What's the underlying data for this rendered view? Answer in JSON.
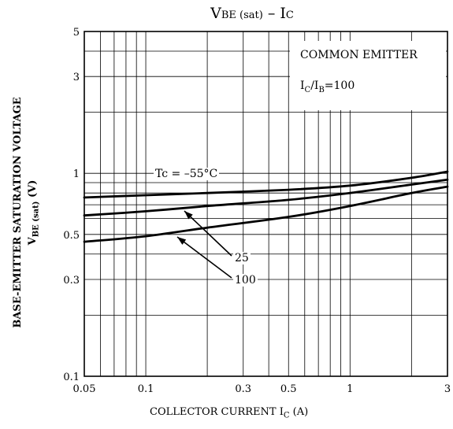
{
  "chart_data": {
    "type": "line",
    "title": {
      "main": "V",
      "main_sub": "BE (sat)",
      "sep": " – ",
      "second": "I",
      "second_sub": "C"
    },
    "xlabel": {
      "text": "COLLECTOR CURRENT  I",
      "sub": "C",
      "unit": "  (A)"
    },
    "ylabel": {
      "line1": "BASE-EMITTER SATURATION VOLTAGE",
      "line2_main": "V",
      "line2_sub": "BE (sat)",
      "line2_unit": "  (V)"
    },
    "x_scale": "log",
    "y_scale": "log",
    "xlim": [
      0.05,
      3
    ],
    "ylim": [
      0.1,
      5
    ],
    "x_ticks": [
      {
        "v": 0.05,
        "label": "0.05"
      },
      {
        "v": 0.1,
        "label": "0.1"
      },
      {
        "v": 0.3,
        "label": "0.3"
      },
      {
        "v": 0.5,
        "label": "0.5"
      },
      {
        "v": 1,
        "label": "1"
      },
      {
        "v": 3,
        "label": "3"
      }
    ],
    "y_ticks": [
      {
        "v": 0.1,
        "label": "0.1"
      },
      {
        "v": 0.3,
        "label": "0.3"
      },
      {
        "v": 0.5,
        "label": "0.5"
      },
      {
        "v": 1,
        "label": "1"
      },
      {
        "v": 3,
        "label": "3"
      },
      {
        "v": 5,
        "label": "5"
      }
    ],
    "grid": true,
    "legend_text": {
      "line1": "COMMON EMITTER",
      "line2_a": "I",
      "line2_a_sub": "C",
      "line2_b": "/I",
      "line2_b_sub": "B",
      "line2_c": "=100"
    },
    "annotations": {
      "tc_label": "Tc = –55°C",
      "label_25": "25",
      "label_100": "100"
    },
    "series": [
      {
        "key": "tc_neg55",
        "x": [
          0.05,
          0.1,
          0.2,
          0.5,
          1,
          2,
          3
        ],
        "y": [
          0.76,
          0.78,
          0.8,
          0.83,
          0.87,
          0.95,
          1.02
        ]
      },
      {
        "key": "tc_25",
        "x": [
          0.05,
          0.1,
          0.2,
          0.5,
          1,
          2,
          3
        ],
        "y": [
          0.62,
          0.65,
          0.69,
          0.74,
          0.8,
          0.88,
          0.93
        ]
      },
      {
        "key": "tc_100",
        "x": [
          0.05,
          0.1,
          0.2,
          0.5,
          1,
          2,
          3
        ],
        "y": [
          0.46,
          0.49,
          0.54,
          0.61,
          0.69,
          0.8,
          0.86
        ]
      }
    ]
  }
}
